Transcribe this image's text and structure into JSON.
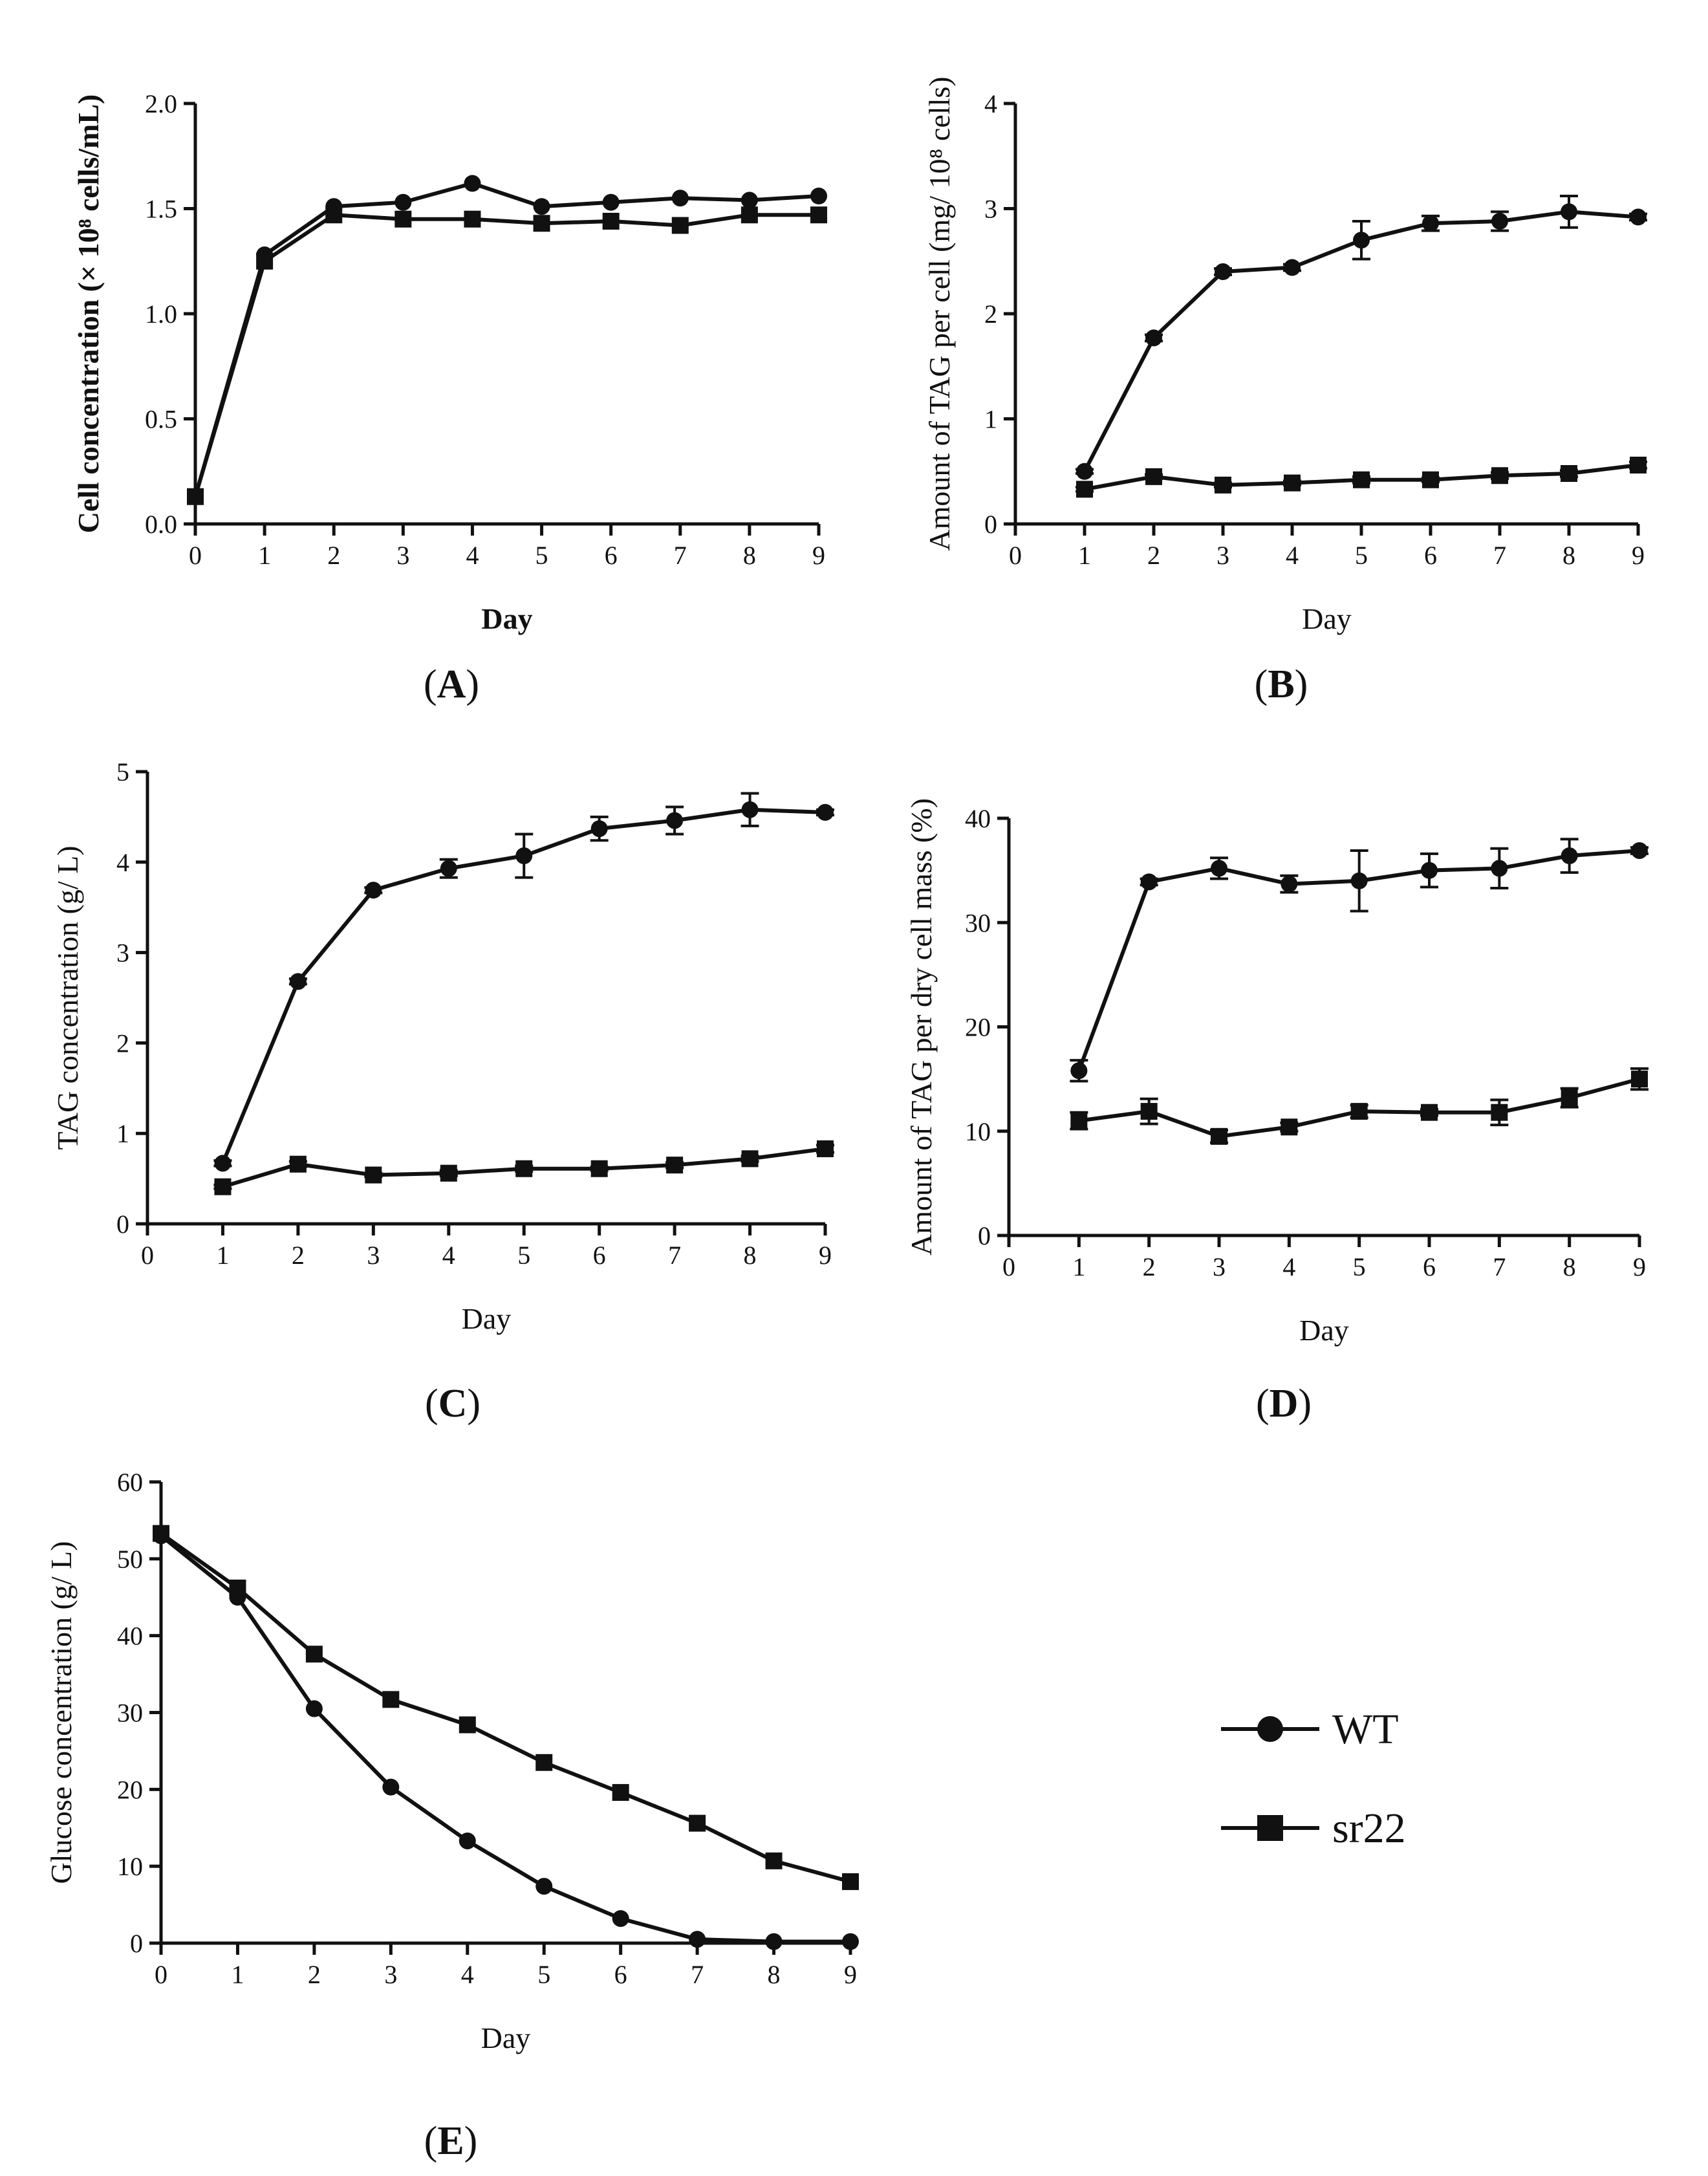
{
  "colors": {
    "ink": "#111111",
    "background": "#ffffff"
  },
  "legend": [
    {
      "name": "WT",
      "marker": "circle"
    },
    {
      "name": "sr22",
      "marker": "square"
    }
  ],
  "chart_data": [
    {
      "id": "A",
      "panel_label": "A",
      "type": "line",
      "xlabel": "Day",
      "ylabel": "Cell concentration (× 10⁸ cells/mL)",
      "xlim": [
        0,
        9
      ],
      "ylim": [
        0,
        2.0
      ],
      "xticks": [
        0,
        1,
        2,
        3,
        4,
        5,
        6,
        7,
        8,
        9
      ],
      "yticks": [
        0.0,
        0.5,
        1.0,
        1.5,
        2.0
      ],
      "ytick_labels": [
        "0.0",
        "0.5",
        "1.0",
        "1.5",
        "2.0"
      ],
      "series": [
        {
          "name": "WT",
          "marker": "circle",
          "x": [
            0,
            1,
            2,
            3,
            4,
            5,
            6,
            7,
            8,
            9
          ],
          "values": [
            0.13,
            1.28,
            1.51,
            1.53,
            1.62,
            1.51,
            1.53,
            1.55,
            1.54,
            1.56
          ]
        },
        {
          "name": "sr22",
          "marker": "square",
          "x": [
            0,
            1,
            2,
            3,
            4,
            5,
            6,
            7,
            8,
            9
          ],
          "values": [
            0.13,
            1.25,
            1.47,
            1.45,
            1.45,
            1.43,
            1.44,
            1.42,
            1.47,
            1.47
          ]
        }
      ]
    },
    {
      "id": "B",
      "panel_label": "B",
      "type": "line",
      "xlabel": "Day",
      "ylabel": "Amount of TAG per cell (mg/ 10⁸ cells)",
      "xlim": [
        0,
        9
      ],
      "ylim": [
        0,
        4
      ],
      "xticks": [
        0,
        1,
        2,
        3,
        4,
        5,
        6,
        7,
        8,
        9
      ],
      "yticks": [
        0,
        1,
        2,
        3,
        4
      ],
      "ytick_labels": [
        "0",
        "1",
        "2",
        "3",
        "4"
      ],
      "series": [
        {
          "name": "WT",
          "marker": "circle",
          "x": [
            1,
            2,
            3,
            4,
            5,
            6,
            7,
            8,
            9
          ],
          "values": [
            0.5,
            1.77,
            2.4,
            2.44,
            2.7,
            2.86,
            2.88,
            2.97,
            2.92
          ],
          "errors": [
            0.02,
            0.03,
            0.03,
            0.03,
            0.18,
            0.07,
            0.09,
            0.15,
            0.03
          ]
        },
        {
          "name": "sr22",
          "marker": "square",
          "x": [
            1,
            2,
            3,
            4,
            5,
            6,
            7,
            8,
            9
          ],
          "values": [
            0.33,
            0.45,
            0.37,
            0.39,
            0.42,
            0.42,
            0.46,
            0.48,
            0.56
          ],
          "errors": [
            0.02,
            0.02,
            0.02,
            0.02,
            0.03,
            0.02,
            0.03,
            0.03,
            0.03
          ]
        }
      ]
    },
    {
      "id": "C",
      "panel_label": "C",
      "type": "line",
      "xlabel": "Day",
      "ylabel": "TAG concentration (g/ L)",
      "xlim": [
        0,
        9
      ],
      "ylim": [
        0,
        5
      ],
      "xticks": [
        0,
        1,
        2,
        3,
        4,
        5,
        6,
        7,
        8,
        9
      ],
      "yticks": [
        0,
        1,
        2,
        3,
        4,
        5
      ],
      "ytick_labels": [
        "0",
        "1",
        "2",
        "3",
        "4",
        "5"
      ],
      "series": [
        {
          "name": "WT",
          "marker": "circle",
          "x": [
            1,
            2,
            3,
            4,
            5,
            6,
            7,
            8,
            9
          ],
          "values": [
            0.67,
            2.68,
            3.69,
            3.93,
            4.07,
            4.37,
            4.46,
            4.58,
            4.55
          ],
          "errors": [
            0.03,
            0.03,
            0.03,
            0.1,
            0.24,
            0.13,
            0.15,
            0.18,
            0.03
          ]
        },
        {
          "name": "sr22",
          "marker": "square",
          "x": [
            1,
            2,
            3,
            4,
            5,
            6,
            7,
            8,
            9
          ],
          "values": [
            0.41,
            0.66,
            0.54,
            0.56,
            0.61,
            0.61,
            0.65,
            0.72,
            0.83
          ],
          "errors": [
            0.02,
            0.03,
            0.02,
            0.03,
            0.03,
            0.02,
            0.03,
            0.03,
            0.04
          ]
        }
      ]
    },
    {
      "id": "D",
      "panel_label": "D",
      "type": "line",
      "xlabel": "Day",
      "ylabel": "Amount of TAG per dry cell mass (%)",
      "xlim": [
        0,
        9
      ],
      "ylim": [
        0,
        40
      ],
      "xticks": [
        0,
        1,
        2,
        3,
        4,
        5,
        6,
        7,
        8,
        9
      ],
      "yticks": [
        0,
        10,
        20,
        30,
        40
      ],
      "ytick_labels": [
        "0",
        "10",
        "20",
        "30",
        "40"
      ],
      "series": [
        {
          "name": "WT",
          "marker": "circle",
          "x": [
            1,
            2,
            3,
            4,
            5,
            6,
            7,
            8,
            9
          ],
          "values": [
            15.8,
            33.9,
            35.2,
            33.7,
            34.0,
            35.0,
            35.2,
            36.4,
            36.9
          ],
          "errors": [
            1.0,
            0.3,
            1.0,
            0.8,
            2.9,
            1.6,
            1.9,
            1.6,
            0.3
          ]
        },
        {
          "name": "sr22",
          "marker": "square",
          "x": [
            1,
            2,
            3,
            4,
            5,
            6,
            7,
            8,
            9
          ],
          "values": [
            11.0,
            11.9,
            9.5,
            10.4,
            11.9,
            11.8,
            11.8,
            13.2,
            15.0
          ],
          "errors": [
            0.8,
            1.2,
            0.6,
            0.4,
            0.6,
            0.3,
            1.2,
            0.9,
            1.0
          ]
        }
      ]
    },
    {
      "id": "E",
      "panel_label": "E",
      "type": "line",
      "xlabel": "Day",
      "ylabel": "Glucose concentration (g/ L)",
      "xlim": [
        0,
        9
      ],
      "ylim": [
        0,
        60
      ],
      "xticks": [
        0,
        1,
        2,
        3,
        4,
        5,
        6,
        7,
        8,
        9
      ],
      "yticks": [
        0,
        10,
        20,
        30,
        40,
        50,
        60
      ],
      "ytick_labels": [
        "0",
        "10",
        "20",
        "30",
        "40",
        "50",
        "60"
      ],
      "series": [
        {
          "name": "WT",
          "marker": "circle",
          "x": [
            0,
            1,
            2,
            3,
            4,
            5,
            6,
            7,
            8,
            9
          ],
          "values": [
            53.0,
            45.0,
            30.5,
            20.3,
            13.3,
            7.4,
            3.2,
            0.5,
            0.2,
            0.2
          ]
        },
        {
          "name": "sr22",
          "marker": "square",
          "x": [
            0,
            1,
            2,
            3,
            4,
            5,
            6,
            7,
            8,
            9
          ],
          "values": [
            53.3,
            46.2,
            37.6,
            31.7,
            28.4,
            23.5,
            19.6,
            15.6,
            10.7,
            8.0
          ]
        }
      ]
    }
  ]
}
